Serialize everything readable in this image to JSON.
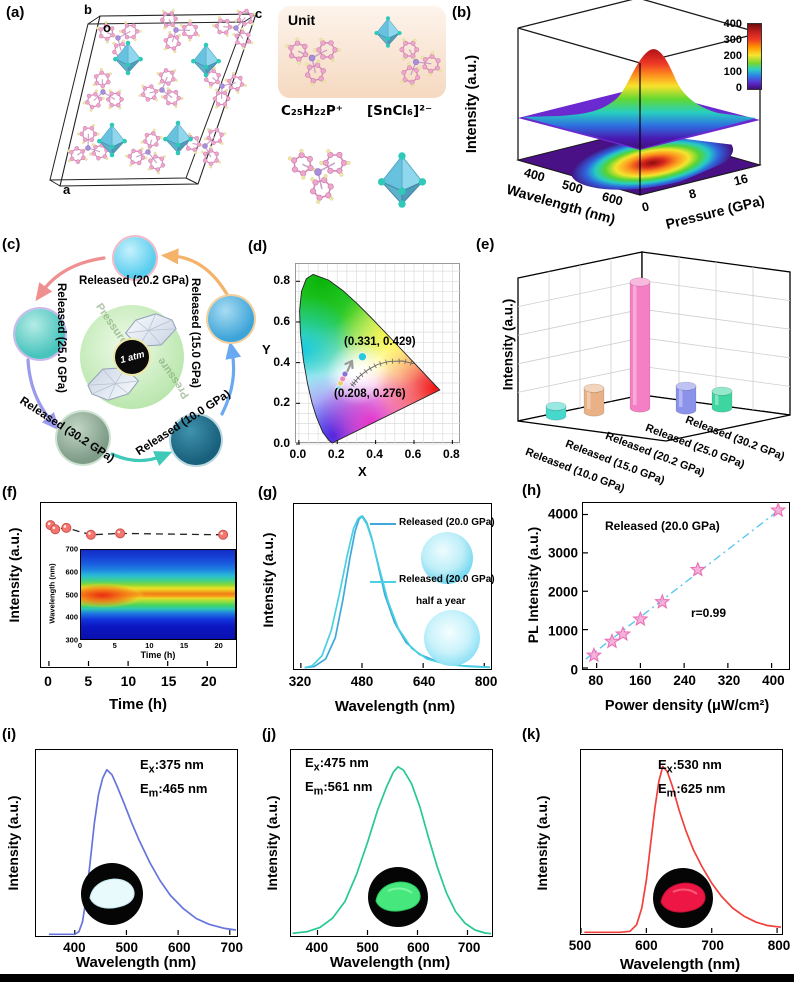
{
  "panels": {
    "a": {
      "label": "(a)",
      "unit_title": "Unit",
      "cation": "C₂₅H₂₂P⁺",
      "anion": "[SnCl₆]²⁻",
      "cell_axes": {
        "b": "b",
        "o": "o",
        "c": "c",
        "a": "a"
      }
    },
    "b": {
      "label": "(b)"
    },
    "c": {
      "label": "(c)",
      "center_pressure": "1 atm",
      "watermark": "Pressure",
      "cycle": [
        {
          "label": "Released (20.2 GPa)",
          "color": "#58cdee",
          "hi": "#c6f1fc",
          "ring": "#f4b9c6"
        },
        {
          "label": "Released (15.0 GPa)",
          "color": "#3da4d9",
          "hi": "#a8dcf2",
          "ring": "#f3cf9b"
        },
        {
          "label": "Released (10.0 GPa)",
          "color": "#19607c",
          "hi": "#3f92ad",
          "ring": "#bcd9e2"
        },
        {
          "label": "Released (30.2 GPa)",
          "color": "#7e9c88",
          "hi": "#c2d6c4",
          "ring": "#cfe3d2"
        },
        {
          "label": "Released (25.0 GPa)",
          "color": "#47c4bc",
          "hi": "#b5ebe6",
          "ring": "#cbb9ee"
        }
      ]
    },
    "d": {
      "label": "(d)"
    },
    "e": {
      "label": "(e)"
    },
    "f": {
      "label": "(f)"
    },
    "g": {
      "label": "(g)"
    },
    "h": {
      "label": "(h)"
    },
    "i": {
      "label": "(i)",
      "ex": {
        "base": "E",
        "sub": "x",
        "rest": ":375 nm"
      },
      "em": {
        "base": "E",
        "sub": "m",
        "rest": ":465 nm"
      }
    },
    "j": {
      "label": "(j)",
      "ex": {
        "base": "E",
        "sub": "x",
        "rest": ":475 nm"
      },
      "em": {
        "base": "E",
        "sub": "m",
        "rest": ":561 nm"
      }
    },
    "k": {
      "label": "(k)",
      "ex": {
        "base": "E",
        "sub": "x",
        "rest": ":530 nm"
      },
      "em": {
        "base": "E",
        "sub": "m",
        "rest": ":625 nm"
      }
    }
  },
  "chart_data": {
    "b": {
      "type": "heatmap",
      "zlabel": "Intensity (a.u.)",
      "xlabel": "Wavelength (nm)",
      "ylabel": "Pressure (GPa)",
      "xticks": [
        "400",
        "500",
        "600"
      ],
      "yticks": [
        "0",
        "8",
        "16"
      ],
      "colorbar_ticks": [
        "400",
        "300",
        "200",
        "100",
        "0"
      ],
      "colorbar_range": [
        0,
        400
      ],
      "peak": {
        "wavelength_nm": 480,
        "pressure_GPa": 9,
        "intensity": 420
      },
      "note": "3D emission-intensity surface vs wavelength and pressure with projected contour map below; single maximum near 480 nm around 8-10 GPa"
    },
    "d": {
      "type": "scatter",
      "xlabel": "X",
      "ylabel": "Y",
      "xticks": [
        "0.0",
        "0.2",
        "0.4",
        "0.6",
        "0.8"
      ],
      "yticks": [
        "0.0",
        "0.2",
        "0.4",
        "0.6",
        "0.8"
      ],
      "xlim": [
        -0.015,
        0.845
      ],
      "ylim": [
        0,
        0.885
      ],
      "annotations": [
        {
          "text": "(0.331, 0.429)",
          "x": 0.345,
          "y": 0.47
        },
        {
          "text": "(0.208, 0.276)",
          "x": 0.21,
          "y": 0.235
        }
      ],
      "points": [
        {
          "x": 0.208,
          "y": 0.276,
          "color": "#9ed9f0"
        },
        {
          "x": 0.217,
          "y": 0.299,
          "color": "#e9cf6b"
        },
        {
          "x": 0.228,
          "y": 0.32,
          "color": "#f387b8"
        },
        {
          "x": 0.24,
          "y": 0.344,
          "color": "#8f6fd8"
        },
        {
          "x": 0.331,
          "y": 0.429,
          "color": "#29c8dd"
        }
      ],
      "note": "CIE 1931 chromaticity diagram; emission coordinates shift from (0.208, 0.276) toward (0.331, 0.429)"
    },
    "e": {
      "type": "bar",
      "zlabel": "Intensity (a.u.)",
      "categories": [
        "Released (10.0 GPa)",
        "Released (15.0 GPa)",
        "Released (20.2 GPa)",
        "Released (25.0 GPa)",
        "Released (30.2 GPa)"
      ],
      "values": [
        0.07,
        0.17,
        0.9,
        0.17,
        0.12
      ],
      "colors": [
        "#46d8cb",
        "#e9b185",
        "#f47fc4",
        "#8a92ea",
        "#3ed6a0"
      ],
      "note": "relative emission intensity; sample released from 20.2 GPa is by far the brightest"
    },
    "f": {
      "type": "line",
      "xlabel": "Time (h)",
      "ylabel": "Intensity (a.u.)",
      "xticks": [
        "0",
        "5",
        "10",
        "15",
        "20"
      ],
      "xlim": [
        -1,
        23.5
      ],
      "ylim": [
        0,
        1.18
      ],
      "marker_color": "#f4766e",
      "points": [
        [
          0.2,
          1.02
        ],
        [
          0.8,
          0.99
        ],
        [
          2.2,
          1.0
        ],
        [
          5.3,
          0.95
        ],
        [
          9,
          0.96
        ],
        [
          22,
          0.95
        ]
      ],
      "inset": {
        "type": "heatmap",
        "xlabel": "Time (h)",
        "ylabel": "Wavelength (nm)",
        "xticks": [
          "0",
          "5",
          "10",
          "15",
          "20"
        ],
        "yticks": [
          "300",
          "400",
          "500",
          "600",
          "700"
        ],
        "xlim": [
          0,
          22.5
        ],
        "ylim": [
          300,
          700
        ],
        "note": "time-resolved emission map: hot band near 480-500 nm, red maximum during first ~5 h"
      }
    },
    "g": {
      "type": "line",
      "xlabel": "Wavelength (nm)",
      "ylabel": "Intensity (a.u.)",
      "xticks": [
        "320",
        "480",
        "640",
        "800"
      ],
      "xlim": [
        302,
        815
      ],
      "ylim": [
        0,
        1.08
      ],
      "legend_note": "half a year",
      "series": [
        {
          "name": "Released (20.0 GPa)",
          "color": "#3fa9dc",
          "points": [
            [
              330,
              0.002
            ],
            [
              355,
              0.01
            ],
            [
              385,
              0.06
            ],
            [
              410,
              0.2
            ],
            [
              430,
              0.45
            ],
            [
              448,
              0.72
            ],
            [
              462,
              0.9
            ],
            [
              472,
              0.98
            ],
            [
              481,
              1.0
            ],
            [
              492,
              0.96
            ],
            [
              505,
              0.86
            ],
            [
              520,
              0.7
            ],
            [
              540,
              0.48
            ],
            [
              565,
              0.3
            ],
            [
              595,
              0.17
            ],
            [
              630,
              0.09
            ],
            [
              680,
              0.04
            ],
            [
              740,
              0.015
            ],
            [
              815,
              0.005
            ]
          ]
        },
        {
          "name": "Released (20.0 GPa)",
          "color": "#49d0e2",
          "points": [
            [
              330,
              0.002
            ],
            [
              350,
              0.015
            ],
            [
              375,
              0.08
            ],
            [
              400,
              0.25
            ],
            [
              422,
              0.5
            ],
            [
              442,
              0.75
            ],
            [
              458,
              0.92
            ],
            [
              470,
              0.985
            ],
            [
              479,
              1.0
            ],
            [
              492,
              0.95
            ],
            [
              508,
              0.83
            ],
            [
              525,
              0.66
            ],
            [
              548,
              0.44
            ],
            [
              575,
              0.26
            ],
            [
              610,
              0.13
            ],
            [
              650,
              0.06
            ],
            [
              700,
              0.025
            ],
            [
              760,
              0.01
            ],
            [
              815,
              0.004
            ]
          ]
        }
      ]
    },
    "h": {
      "type": "scatter",
      "xlabel": "Power density (μW/cm²)",
      "ylabel": "PL Intensity (a.u.)",
      "xticks": [
        "80",
        "160",
        "240",
        "320",
        "400"
      ],
      "yticks": [
        "0",
        "1000",
        "2000",
        "3000",
        "4000"
      ],
      "xlim": [
        55,
        430
      ],
      "ylim": [
        0,
        4300
      ],
      "annotation": "Released (20.0 GPa)",
      "r_label": "r=0.99",
      "marker_color": "#f2a0cf",
      "marker_edge": "#ec6fb7",
      "fit_line": {
        "color": "#58c8f0",
        "style": "dash-dot",
        "points": [
          [
            60,
            230
          ],
          [
            424,
            4230
          ]
        ]
      },
      "points": [
        [
          75,
          330
        ],
        [
          108,
          690
        ],
        [
          128,
          880
        ],
        [
          160,
          1270
        ],
        [
          200,
          1720
        ],
        [
          265,
          2560
        ],
        [
          412,
          4110
        ]
      ]
    },
    "i": {
      "type": "line",
      "xlabel": "Wavelength (nm)",
      "ylabel": "Intensity (a.u.)",
      "xticks": [
        "400",
        "500",
        "600",
        "700"
      ],
      "xlim": [
        325,
        712
      ],
      "ylim": [
        0,
        1.12
      ],
      "excitation_nm": 375,
      "emission_peak_nm": 465,
      "series": [
        {
          "name": "blue emission",
          "color": "#6674dc",
          "points": [
            [
              350,
              0.004
            ],
            [
              400,
              0.004
            ],
            [
              408,
              0.02
            ],
            [
              415,
              0.08
            ],
            [
              422,
              0.22
            ],
            [
              430,
              0.45
            ],
            [
              438,
              0.68
            ],
            [
              446,
              0.85
            ],
            [
              454,
              0.95
            ],
            [
              462,
              1.0
            ],
            [
              472,
              0.97
            ],
            [
              482,
              0.9
            ],
            [
              495,
              0.8
            ],
            [
              510,
              0.68
            ],
            [
              525,
              0.57
            ],
            [
              545,
              0.44
            ],
            [
              565,
              0.33
            ],
            [
              585,
              0.24
            ],
            [
              610,
              0.16
            ],
            [
              635,
              0.1
            ],
            [
              660,
              0.065
            ],
            [
              690,
              0.04
            ],
            [
              712,
              0.03
            ]
          ]
        }
      ]
    },
    "j": {
      "type": "line",
      "xlabel": "Wavelength (nm)",
      "ylabel": "Intensity (a.u.)",
      "xticks": [
        "400",
        "500",
        "600",
        "700"
      ],
      "xlim": [
        347,
        747
      ],
      "ylim": [
        0,
        1.1
      ],
      "excitation_nm": 475,
      "emission_peak_nm": 561,
      "series": [
        {
          "name": "green emission",
          "color": "#26c98f",
          "points": [
            [
              350,
              0.01
            ],
            [
              380,
              0.02
            ],
            [
              405,
              0.045
            ],
            [
              430,
              0.1
            ],
            [
              455,
              0.2
            ],
            [
              478,
              0.36
            ],
            [
              500,
              0.55
            ],
            [
              520,
              0.74
            ],
            [
              538,
              0.88
            ],
            [
              552,
              0.97
            ],
            [
              561,
              1.0
            ],
            [
              572,
              0.98
            ],
            [
              588,
              0.9
            ],
            [
              605,
              0.76
            ],
            [
              622,
              0.58
            ],
            [
              640,
              0.4
            ],
            [
              658,
              0.25
            ],
            [
              676,
              0.14
            ],
            [
              695,
              0.07
            ],
            [
              715,
              0.03
            ],
            [
              735,
              0.012
            ],
            [
              747,
              0.008
            ]
          ]
        }
      ]
    },
    "k": {
      "type": "line",
      "xlabel": "Wavelength (nm)",
      "ylabel": "Intensity (a.u.)",
      "xticks": [
        "500",
        "600",
        "700",
        "800"
      ],
      "xlim": [
        500,
        806
      ],
      "ylim": [
        0,
        1.1
      ],
      "excitation_nm": 530,
      "emission_peak_nm": 625,
      "series": [
        {
          "name": "red emission",
          "color": "#f2403c",
          "points": [
            [
              505,
              0.004
            ],
            [
              560,
              0.004
            ],
            [
              575,
              0.01
            ],
            [
              585,
              0.05
            ],
            [
              593,
              0.15
            ],
            [
              600,
              0.32
            ],
            [
              607,
              0.55
            ],
            [
              613,
              0.75
            ],
            [
              619,
              0.91
            ],
            [
              625,
              1.0
            ],
            [
              632,
              0.97
            ],
            [
              640,
              0.88
            ],
            [
              650,
              0.74
            ],
            [
              660,
              0.62
            ],
            [
              672,
              0.5
            ],
            [
              685,
              0.4
            ],
            [
              700,
              0.3
            ],
            [
              715,
              0.22
            ],
            [
              732,
              0.15
            ],
            [
              750,
              0.1
            ],
            [
              768,
              0.065
            ],
            [
              785,
              0.045
            ],
            [
              806,
              0.035
            ]
          ]
        }
      ]
    }
  }
}
